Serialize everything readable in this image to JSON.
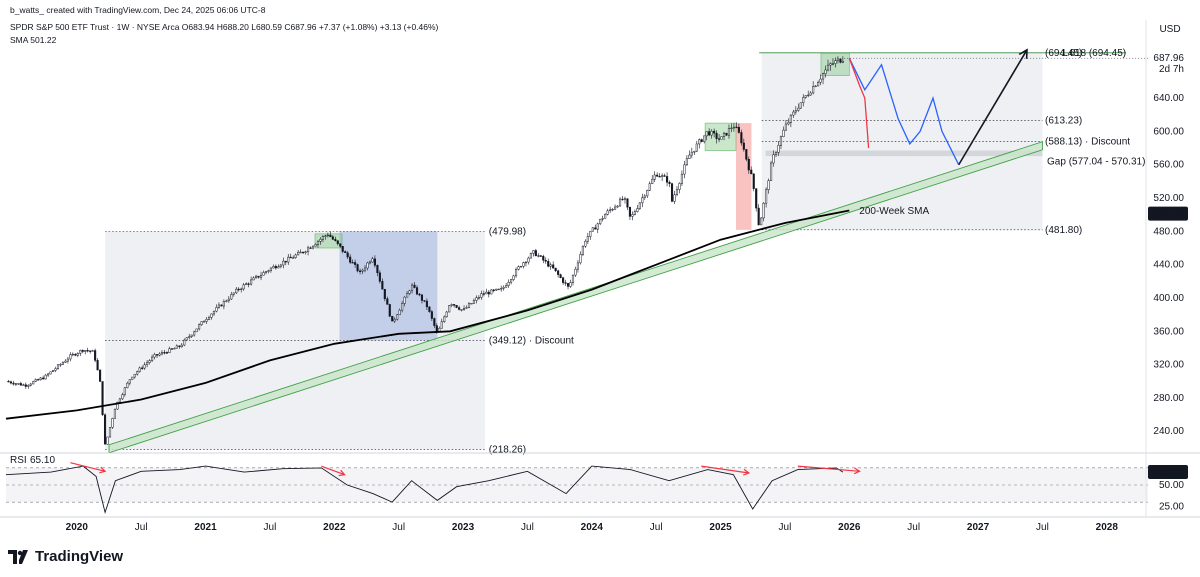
{
  "header": {
    "author_line": "b_watts_ created with TradingView.com, Dec 24, 2025 06:06 UTC-8",
    "symbol_line": "SPDR S&P 500 ETF Trust · 1W · NYSE Arca  O683.94  H688.20  L680.59  C687.96  +7.37 (+1.08%)  +3.13 (+0.46%)",
    "sma_line": "SMA  501.22",
    "currency": "USD"
  },
  "brand": {
    "logo_text": "TradingView"
  },
  "colors": {
    "candle": "#131722",
    "sma": "#000000",
    "channel_fill": "#c8e6c9",
    "channel_line": "#43a047",
    "zone_gray": "#d1d4dc",
    "zone_blue": "#8ea5dc",
    "zone_green": "#66bb6a",
    "zone_red": "#ef5350",
    "projection_blue": "#2962ff",
    "projection_red": "#f23645",
    "fib_green": "#388e3c",
    "rsi_arrow": "#f23645"
  },
  "chart_data": {
    "type": "candlestick",
    "title": "SPDR S&P 500 ETF Trust · 1W · NYSE Arca",
    "ylabel": "USD",
    "ylim": [
      215,
      705
    ],
    "y_ticks": [
      240,
      280,
      320,
      360,
      400,
      440,
      480,
      520,
      560,
      600,
      640
    ],
    "y_tick_labels": [
      "240.00",
      "280.00",
      "320.00",
      "360.00",
      "400.00",
      "440.00",
      "480.00",
      "520.00",
      "560.00",
      "600.00",
      "640.00"
    ],
    "x_range": [
      2019.45,
      2028.32
    ],
    "x_ticks": [
      {
        "label": "2020",
        "x": 2020.0,
        "bold": true
      },
      {
        "label": "Jul",
        "x": 2020.5,
        "bold": false
      },
      {
        "label": "2021",
        "x": 2021.0,
        "bold": true
      },
      {
        "label": "Jul",
        "x": 2021.5,
        "bold": false
      },
      {
        "label": "2022",
        "x": 2022.0,
        "bold": true
      },
      {
        "label": "Jul",
        "x": 2022.5,
        "bold": false
      },
      {
        "label": "2023",
        "x": 2023.0,
        "bold": true
      },
      {
        "label": "Jul",
        "x": 2023.5,
        "bold": false
      },
      {
        "label": "2024",
        "x": 2024.0,
        "bold": true
      },
      {
        "label": "Jul",
        "x": 2024.5,
        "bold": false
      },
      {
        "label": "2025",
        "x": 2025.0,
        "bold": true
      },
      {
        "label": "Jul",
        "x": 2025.5,
        "bold": false
      },
      {
        "label": "2026",
        "x": 2026.0,
        "bold": true
      },
      {
        "label": "Jul",
        "x": 2026.5,
        "bold": false
      },
      {
        "label": "2027",
        "x": 2027.0,
        "bold": true
      },
      {
        "label": "Jul",
        "x": 2027.5,
        "bold": false
      },
      {
        "label": "2028",
        "x": 2028.0,
        "bold": true
      }
    ],
    "price_path": [
      [
        2019.45,
        300
      ],
      [
        2019.6,
        295
      ],
      [
        2019.75,
        305
      ],
      [
        2019.95,
        330
      ],
      [
        2020.05,
        338
      ],
      [
        2020.13,
        335
      ],
      [
        2020.18,
        300
      ],
      [
        2020.22,
        222
      ],
      [
        2020.3,
        270
      ],
      [
        2020.42,
        305
      ],
      [
        2020.6,
        330
      ],
      [
        2020.8,
        342
      ],
      [
        2021.0,
        375
      ],
      [
        2021.25,
        410
      ],
      [
        2021.5,
        435
      ],
      [
        2021.75,
        455
      ],
      [
        2021.95,
        477
      ],
      [
        2022.05,
        460
      ],
      [
        2022.2,
        430
      ],
      [
        2022.3,
        450
      ],
      [
        2022.45,
        370
      ],
      [
        2022.6,
        415
      ],
      [
        2022.72,
        390
      ],
      [
        2022.8,
        357
      ],
      [
        2022.9,
        395
      ],
      [
        2023.0,
        385
      ],
      [
        2023.15,
        405
      ],
      [
        2023.3,
        410
      ],
      [
        2023.45,
        440
      ],
      [
        2023.55,
        455
      ],
      [
        2023.7,
        435
      ],
      [
        2023.82,
        412
      ],
      [
        2023.95,
        470
      ],
      [
        2024.1,
        500
      ],
      [
        2024.25,
        520
      ],
      [
        2024.3,
        495
      ],
      [
        2024.5,
        550
      ],
      [
        2024.6,
        540
      ],
      [
        2024.62,
        515
      ],
      [
        2024.75,
        570
      ],
      [
        2024.9,
        600
      ],
      [
        2025.0,
        590
      ],
      [
        2025.1,
        608
      ],
      [
        2025.15,
        595
      ],
      [
        2025.25,
        540
      ],
      [
        2025.3,
        485
      ],
      [
        2025.4,
        565
      ],
      [
        2025.5,
        605
      ],
      [
        2025.6,
        630
      ],
      [
        2025.75,
        660
      ],
      [
        2025.85,
        680
      ],
      [
        2025.95,
        688
      ]
    ],
    "sma_label": "200-Week SMA",
    "sma_path": [
      [
        2019.45,
        255
      ],
      [
        2020.0,
        265
      ],
      [
        2020.5,
        278
      ],
      [
        2021.0,
        298
      ],
      [
        2021.5,
        325
      ],
      [
        2022.0,
        345
      ],
      [
        2022.5,
        357
      ],
      [
        2022.9,
        360
      ],
      [
        2023.5,
        385
      ],
      [
        2024.0,
        410
      ],
      [
        2024.5,
        440
      ],
      [
        2025.0,
        470
      ],
      [
        2025.5,
        490
      ],
      [
        2026.0,
        505
      ]
    ],
    "channel": {
      "lower_start": [
        2020.25,
        214
      ],
      "lower_end": [
        2027.5,
        578
      ],
      "thickness": 8
    },
    "zones": [
      {
        "type": "range",
        "x0": 2020.22,
        "x1": 2023.17,
        "y0": 218.26,
        "y1": 479.98
      },
      {
        "type": "range",
        "x0": 2025.32,
        "x1": 2027.5,
        "y0": 481.8,
        "y1": 694.45
      },
      {
        "type": "blue",
        "x0": 2022.04,
        "x1": 2022.8,
        "y0": 349.12,
        "y1": 479.98
      },
      {
        "type": "green",
        "x0": 2021.85,
        "x1": 2022.06,
        "y0": 460,
        "y1": 477
      },
      {
        "type": "green",
        "x0": 2024.88,
        "x1": 2025.12,
        "y0": 577,
        "y1": 610
      },
      {
        "type": "red",
        "x0": 2025.12,
        "x1": 2025.24,
        "y0": 481.8,
        "y1": 610
      },
      {
        "type": "green",
        "x0": 2025.78,
        "x1": 2026.0,
        "y0": 667,
        "y1": 694
      }
    ],
    "levels": [
      {
        "label": "(479.98)",
        "y": 479.98
      },
      {
        "label": "(349.12) · Discount",
        "y": 349.12
      },
      {
        "label": "(218.26)",
        "y": 218.26
      },
      {
        "label": "(694.45)",
        "y": 694.45
      },
      {
        "label": "1.618 (694.45)",
        "y": 694.45
      },
      {
        "label": "(613.23)",
        "y": 613.23
      },
      {
        "label": "(588.13) · Discount",
        "y": 588.13
      },
      {
        "label": "Gap (577.04 - 570.31)",
        "y": 573.7
      },
      {
        "label": "(481.80)",
        "y": 481.8
      }
    ],
    "gap": {
      "y0": 570.31,
      "y1": 577.04
    },
    "projection_blue": [
      [
        2026.0,
        688
      ],
      [
        2026.12,
        650
      ],
      [
        2026.25,
        680
      ],
      [
        2026.38,
        615
      ],
      [
        2026.47,
        585
      ],
      [
        2026.55,
        600
      ],
      [
        2026.65,
        640
      ],
      [
        2026.72,
        600
      ],
      [
        2026.85,
        560
      ]
    ],
    "projection_red": [
      [
        2026.0,
        688
      ],
      [
        2026.08,
        655
      ],
      [
        2026.12,
        640
      ],
      [
        2026.15,
        580
      ]
    ],
    "projection_arrow": [
      [
        2026.85,
        560
      ],
      [
        2027.38,
        698
      ]
    ],
    "current_price": {
      "label": "687.96",
      "y": 687.96
    },
    "time_left": "2d 7h",
    "sma_value": {
      "label": "501.22",
      "y": 501.22
    },
    "rsi": {
      "label": "RSI",
      "value": "65.10",
      "ylim": [
        15,
        85
      ],
      "ticks": [
        {
          "label": "50.00",
          "v": 50
        },
        {
          "label": "25.00",
          "v": 25
        }
      ],
      "overbought": 70,
      "oversold": 30,
      "path": [
        [
          2019.45,
          62
        ],
        [
          2019.8,
          65
        ],
        [
          2020.05,
          72
        ],
        [
          2020.15,
          60
        ],
        [
          2020.22,
          18
        ],
        [
          2020.3,
          55
        ],
        [
          2020.5,
          66
        ],
        [
          2020.8,
          68
        ],
        [
          2021.0,
          72
        ],
        [
          2021.3,
          65
        ],
        [
          2021.6,
          69
        ],
        [
          2021.9,
          70
        ],
        [
          2022.1,
          50
        ],
        [
          2022.3,
          40
        ],
        [
          2022.45,
          30
        ],
        [
          2022.6,
          55
        ],
        [
          2022.8,
          32
        ],
        [
          2022.95,
          48
        ],
        [
          2023.2,
          55
        ],
        [
          2023.5,
          66
        ],
        [
          2023.8,
          40
        ],
        [
          2024.0,
          72
        ],
        [
          2024.3,
          68
        ],
        [
          2024.6,
          55
        ],
        [
          2024.9,
          68
        ],
        [
          2025.1,
          62
        ],
        [
          2025.25,
          22
        ],
        [
          2025.4,
          55
        ],
        [
          2025.6,
          68
        ],
        [
          2025.9,
          70
        ],
        [
          2025.95,
          65
        ]
      ],
      "arrows": [
        [
          [
            2019.95,
            76
          ],
          [
            2020.22,
            66
          ]
        ],
        [
          [
            2021.9,
            72
          ],
          [
            2022.08,
            62
          ]
        ],
        [
          [
            2024.85,
            72
          ],
          [
            2025.22,
            64
          ]
        ],
        [
          [
            2025.6,
            72
          ],
          [
            2026.08,
            66
          ]
        ]
      ]
    }
  }
}
